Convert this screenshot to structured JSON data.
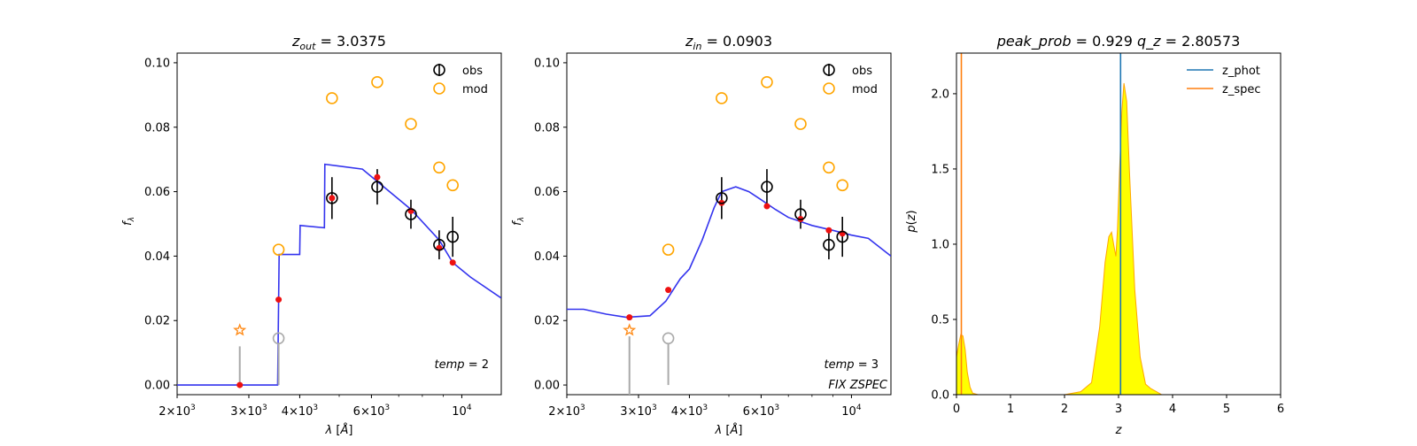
{
  "chart_data": [
    {
      "type": "scatter",
      "title": "z_out = 3.0375",
      "xlabel": "λ [Å]",
      "ylabel": "f_λ",
      "xscale": "log",
      "xlim": [
        2000,
        12500
      ],
      "ylim": [
        -0.003,
        0.103
      ],
      "xticks": [
        {
          "value": 2000,
          "label": "2×10^3"
        },
        {
          "value": 3000,
          "label": "3×10^3"
        },
        {
          "value": 4000,
          "label": "4×10^3"
        },
        {
          "value": 6000,
          "label": "6×10^3"
        },
        {
          "value": 10000,
          "label": "10^4"
        }
      ],
      "yticks": [
        "0.00",
        "0.02",
        "0.04",
        "0.06",
        "0.08",
        "0.10"
      ],
      "legend": {
        "position": "top-right",
        "entries": [
          "obs",
          "mod"
        ]
      },
      "annotations": [
        "temp = 2"
      ],
      "series": [
        {
          "name": "obs",
          "x": [
            4800,
            6200,
            7500,
            8800,
            9500
          ],
          "y": [
            0.058,
            0.0615,
            0.053,
            0.0435,
            0.046
          ],
          "yerr": [
            0.0065,
            0.0055,
            0.0045,
            0.0045,
            0.0062
          ]
        },
        {
          "name": "mod",
          "x": [
            3550,
            4800,
            6200,
            7500,
            8800,
            9500
          ],
          "y": [
            0.042,
            0.089,
            0.094,
            0.081,
            0.0675,
            0.062
          ]
        },
        {
          "name": "obs_gray",
          "x": [
            3550
          ],
          "y": [
            0.0145
          ],
          "lower_errbar_to": 0.0
        },
        {
          "name": "upper_limit",
          "x": [
            2850
          ],
          "y": [
            0.017
          ],
          "lower_errbar_from": 0.012
        },
        {
          "name": "synthetic_fluxes",
          "x": [
            2850,
            3550,
            4800,
            6200,
            7500,
            8800,
            9500
          ],
          "y": [
            0.0,
            0.0265,
            0.058,
            0.0645,
            0.054,
            0.0425,
            0.038
          ]
        },
        {
          "name": "template",
          "x": [
            2000,
            3500,
            3530,
            3560,
            4000,
            4010,
            4600,
            4610,
            5700,
            7500,
            8800,
            9500,
            10500,
            12500
          ],
          "y": [
            0.0,
            0.0,
            0.0,
            0.0405,
            0.0405,
            0.0495,
            0.0488,
            0.0685,
            0.067,
            0.0545,
            0.045,
            0.038,
            0.0335,
            0.027
          ]
        }
      ]
    },
    {
      "type": "scatter",
      "title": "z_in = 0.0903",
      "xlabel": "λ [Å]",
      "ylabel": "f_λ",
      "xscale": "log",
      "xlim": [
        2000,
        12500
      ],
      "ylim": [
        -0.003,
        0.103
      ],
      "xticks": [
        {
          "value": 2000,
          "label": "2×10^3"
        },
        {
          "value": 3000,
          "label": "3×10^3"
        },
        {
          "value": 4000,
          "label": "4×10^3"
        },
        {
          "value": 6000,
          "label": "6×10^3"
        },
        {
          "value": 10000,
          "label": "10^4"
        }
      ],
      "yticks": [
        "0.00",
        "0.02",
        "0.04",
        "0.06",
        "0.08",
        "0.10"
      ],
      "legend": {
        "position": "top-right",
        "entries": [
          "obs",
          "mod"
        ]
      },
      "annotations": [
        "temp = 3",
        "FIX ZSPEC"
      ],
      "series": [
        {
          "name": "obs",
          "x": [
            4800,
            6200,
            7500,
            8800,
            9500
          ],
          "y": [
            0.058,
            0.0615,
            0.053,
            0.0435,
            0.046
          ],
          "yerr": [
            0.0065,
            0.0055,
            0.0045,
            0.0045,
            0.0062
          ]
        },
        {
          "name": "mod",
          "x": [
            3550,
            4800,
            6200,
            7500,
            8800,
            9500
          ],
          "y": [
            0.042,
            0.089,
            0.094,
            0.081,
            0.0675,
            0.062
          ]
        },
        {
          "name": "obs_gray",
          "x": [
            3550
          ],
          "y": [
            0.0145
          ],
          "lower_errbar_to": 0.0
        },
        {
          "name": "upper_limit",
          "x": [
            2850
          ],
          "y": [
            0.017
          ],
          "lower_errbar_to": -0.003
        },
        {
          "name": "synthetic_fluxes",
          "x": [
            2850,
            3550,
            4800,
            6200,
            7500,
            8800,
            9500
          ],
          "y": [
            0.021,
            0.0295,
            0.0565,
            0.0555,
            0.0515,
            0.048,
            0.047
          ]
        },
        {
          "name": "template",
          "x": [
            2000,
            2200,
            2500,
            2800,
            3200,
            3500,
            3800,
            4000,
            4300,
            4600,
            4800,
            5200,
            5600,
            6000,
            6500,
            7000,
            8000,
            9000,
            10000,
            11000,
            12500
          ],
          "y": [
            0.0235,
            0.0235,
            0.022,
            0.021,
            0.0215,
            0.026,
            0.033,
            0.036,
            0.045,
            0.055,
            0.06,
            0.0615,
            0.06,
            0.0575,
            0.0545,
            0.052,
            0.0495,
            0.048,
            0.0465,
            0.0455,
            0.04
          ]
        }
      ]
    },
    {
      "type": "area",
      "title": "peak_prob = 0.929      q_z = 2.80573",
      "xlabel": "z",
      "ylabel": "p(z)",
      "xlim": [
        0,
        6
      ],
      "ylim": [
        0,
        2.27
      ],
      "xticks": [
        "0",
        "1",
        "2",
        "3",
        "4",
        "5",
        "6"
      ],
      "yticks": [
        "0.0",
        "0.5",
        "1.0",
        "1.5",
        "2.0"
      ],
      "legend": {
        "position": "top-right",
        "entries": [
          "z_phot",
          "z_spec"
        ]
      },
      "vlines": [
        {
          "name": "z_phot",
          "x": 3.0375,
          "color": "#1f77b4"
        },
        {
          "name": "z_spec",
          "x": 0.0903,
          "color": "#ff7f0e"
        }
      ],
      "pdf": {
        "z": [
          0.0,
          0.04,
          0.08,
          0.12,
          0.16,
          0.2,
          0.25,
          0.3,
          0.4,
          2.0,
          2.3,
          2.5,
          2.65,
          2.75,
          2.82,
          2.87,
          2.92,
          2.95,
          2.98,
          3.02,
          3.06,
          3.1,
          3.15,
          3.2,
          3.3,
          3.4,
          3.5,
          3.6,
          3.7,
          3.8,
          4.0,
          5.0
        ],
        "p": [
          0.25,
          0.33,
          0.4,
          0.39,
          0.3,
          0.15,
          0.05,
          0.01,
          0.0,
          0.0,
          0.02,
          0.08,
          0.45,
          0.88,
          1.05,
          1.08,
          0.98,
          0.92,
          1.1,
          1.5,
          1.88,
          2.07,
          1.95,
          1.5,
          0.7,
          0.25,
          0.07,
          0.04,
          0.02,
          0.0,
          0.0,
          0.0
        ],
        "fill": "#ffff00",
        "edge": "#ffa500"
      }
    }
  ],
  "colors": {
    "obs": "#000000",
    "mod": "#ffa500",
    "template": "#3333ee",
    "synthetic": "#ee1111",
    "gray": "#aaaaaa",
    "upper_limit": "#ff8c1a"
  }
}
